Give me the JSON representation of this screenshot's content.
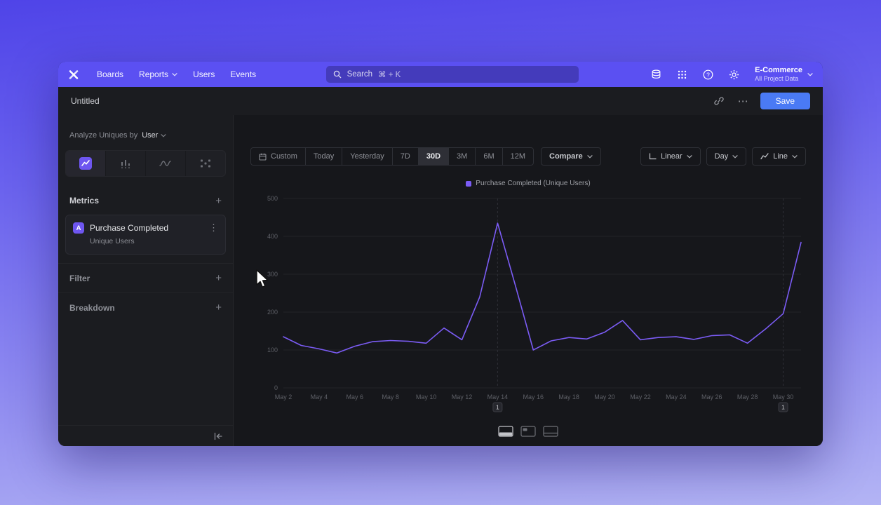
{
  "colors": {
    "accent_purple": "#7b5cf5",
    "nav_purple": "#5b50f2",
    "save_blue": "#4a7af5"
  },
  "icons": {
    "more": "⋯",
    "kebab": "⋮"
  },
  "nav": {
    "items": [
      {
        "label": "Boards",
        "chevron": false
      },
      {
        "label": "Reports",
        "chevron": true
      },
      {
        "label": "Users",
        "chevron": false
      },
      {
        "label": "Events",
        "chevron": false
      }
    ],
    "search": {
      "placeholder": "Search",
      "shortcut": "⌘ + K"
    },
    "project": {
      "name": "E-Commerce",
      "scope": "All Project Data"
    }
  },
  "header": {
    "title": "Untitled",
    "save_label": "Save"
  },
  "sidebar": {
    "analyze_prefix": "Analyze Uniques by",
    "analyze_value": "User",
    "metrics_label": "Metrics",
    "filter_label": "Filter",
    "breakdown_label": "Breakdown",
    "add_label": "+",
    "metric": {
      "badge": "A",
      "name": "Purchase Completed",
      "subtitle": "Unique Users"
    }
  },
  "toolbar": {
    "ranges": [
      "Custom",
      "Today",
      "Yesterday",
      "7D",
      "30D",
      "3M",
      "6M",
      "12M"
    ],
    "selected_range": "30D",
    "compare_label": "Compare",
    "scale_label": "Linear",
    "interval_label": "Day",
    "chart_type_label": "Line"
  },
  "chart_data": {
    "type": "line",
    "legend": "Purchase Completed (Unique Users)",
    "series_color": "#7b5cf5",
    "x": [
      "May 2",
      "May 3",
      "May 4",
      "May 5",
      "May 6",
      "May 7",
      "May 8",
      "May 9",
      "May 10",
      "May 11",
      "May 12",
      "May 13",
      "May 14",
      "May 15",
      "May 16",
      "May 17",
      "May 18",
      "May 19",
      "May 20",
      "May 21",
      "May 22",
      "May 23",
      "May 24",
      "May 25",
      "May 26",
      "May 27",
      "May 28",
      "May 29",
      "May 30",
      "May 31"
    ],
    "values": [
      135,
      112,
      103,
      92,
      110,
      122,
      125,
      123,
      118,
      158,
      127,
      240,
      435,
      270,
      100,
      124,
      133,
      129,
      147,
      178,
      127,
      133,
      135,
      128,
      138,
      140,
      118,
      155,
      196,
      384
    ],
    "ylim": [
      0,
      500
    ],
    "yticks": [
      0,
      100,
      200,
      300,
      400,
      500
    ],
    "xtick_every": 2,
    "grid": true,
    "legend_position": "top-center",
    "annotations": [
      {
        "label": "1",
        "x": "May 14"
      },
      {
        "label": "1",
        "x": "May 30"
      }
    ]
  }
}
